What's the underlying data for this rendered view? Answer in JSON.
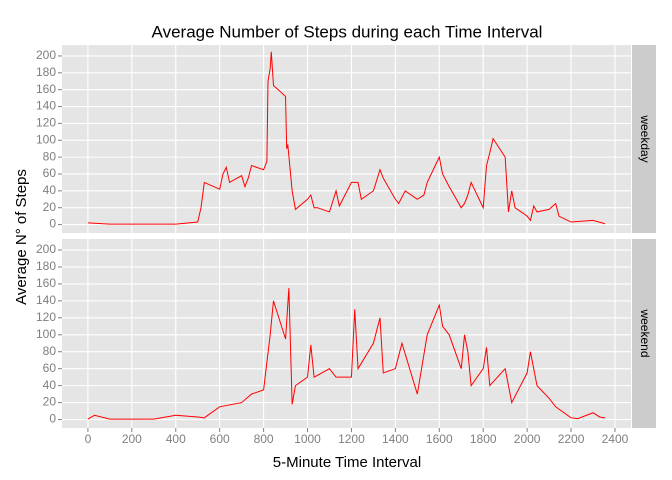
{
  "chart_data": {
    "type": "line",
    "title": "Average Number of Steps during each Time Interval",
    "x_label": "5-Minute Time Interval",
    "y_label": "Average N° of Steps",
    "xlim": [
      -118,
      2473
    ],
    "xticks": [
      0,
      200,
      400,
      600,
      800,
      1000,
      1200,
      1400,
      1600,
      1800,
      2000,
      2200,
      2400
    ],
    "ylim": [
      -10,
      213
    ],
    "yticks": [
      0,
      20,
      40,
      60,
      80,
      100,
      120,
      140,
      160,
      180,
      200
    ],
    "grid": true,
    "series": [
      {
        "name": "weekday",
        "color": "#ff0000",
        "x": [
          0,
          100,
          200,
          300,
          400,
          500,
          515,
          530,
          600,
          615,
          630,
          645,
          700,
          715,
          730,
          745,
          800,
          815,
          820,
          830,
          835,
          845,
          900,
          905,
          910,
          930,
          945,
          1000,
          1015,
          1030,
          1045,
          1100,
          1130,
          1145,
          1200,
          1230,
          1245,
          1300,
          1330,
          1345,
          1400,
          1415,
          1445,
          1500,
          1530,
          1545,
          1600,
          1615,
          1645,
          1700,
          1715,
          1730,
          1745,
          1800,
          1815,
          1830,
          1845,
          1900,
          1915,
          1930,
          1945,
          2000,
          2015,
          2030,
          2045,
          2100,
          2130,
          2145,
          2200,
          2300,
          2355
        ],
        "values": [
          2,
          0.5,
          0.5,
          0.5,
          0.5,
          3,
          20,
          50,
          42,
          60,
          68,
          50,
          58,
          45,
          55,
          70,
          65,
          75,
          170,
          185,
          205,
          165,
          152,
          90,
          95,
          40,
          18,
          30,
          35,
          20,
          20,
          15,
          40,
          22,
          50,
          50,
          30,
          40,
          65,
          55,
          30,
          25,
          40,
          30,
          35,
          50,
          80,
          60,
          45,
          20,
          25,
          35,
          50,
          20,
          70,
          85,
          102,
          80,
          15,
          40,
          20,
          10,
          5,
          22,
          15,
          18,
          25,
          10,
          3,
          5,
          1
        ]
      },
      {
        "name": "weekend",
        "color": "#ff0000",
        "x": [
          0,
          30,
          100,
          300,
          400,
          500,
          530,
          600,
          700,
          745,
          800,
          830,
          845,
          900,
          915,
          930,
          945,
          1000,
          1015,
          1030,
          1100,
          1130,
          1200,
          1215,
          1230,
          1300,
          1330,
          1345,
          1400,
          1430,
          1500,
          1545,
          1600,
          1615,
          1645,
          1700,
          1715,
          1730,
          1745,
          1800,
          1815,
          1830,
          1900,
          1930,
          2000,
          2015,
          2045,
          2100,
          2130,
          2200,
          2230,
          2300,
          2330,
          2355
        ],
        "values": [
          0.5,
          5,
          0.5,
          0.5,
          5,
          3,
          2,
          15,
          20,
          30,
          35,
          100,
          140,
          95,
          155,
          18,
          40,
          50,
          88,
          50,
          60,
          50,
          50,
          130,
          60,
          90,
          120,
          55,
          60,
          90,
          30,
          100,
          135,
          110,
          100,
          60,
          100,
          80,
          40,
          60,
          85,
          40,
          60,
          20,
          55,
          80,
          40,
          25,
          15,
          2,
          1,
          8,
          3,
          2
        ]
      }
    ]
  }
}
